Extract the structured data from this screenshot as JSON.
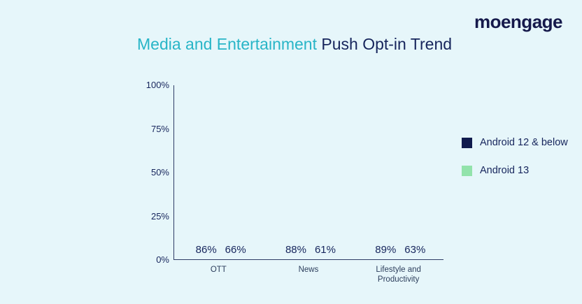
{
  "page": {
    "logo": "moengage",
    "title_highlight": "Media and Entertainment",
    "title_rest": " Push Opt-in Trend"
  },
  "colors": {
    "background": "#e6f6fa",
    "navy": "#101b4d",
    "green": "#92e3ab",
    "teal": "#28b5c7"
  },
  "chart_data": {
    "type": "bar",
    "title": "Media and Entertainment Push Opt-in Trend",
    "categories": [
      "OTT",
      "News",
      "Lifestyle and Productivity"
    ],
    "series": [
      {
        "name": "Android 12 & below",
        "color": "#101b4d",
        "values": [
          86,
          88,
          89
        ]
      },
      {
        "name": "Android 13",
        "color": "#92e3ab",
        "values": [
          66,
          61,
          63
        ]
      }
    ],
    "value_suffix": "%",
    "xlabel": "",
    "ylabel": "",
    "ylim": [
      0,
      100
    ],
    "y_ticks": [
      "100%",
      "75%",
      "50%",
      "25%",
      "0%"
    ],
    "grid": false,
    "legend_position": "right"
  }
}
